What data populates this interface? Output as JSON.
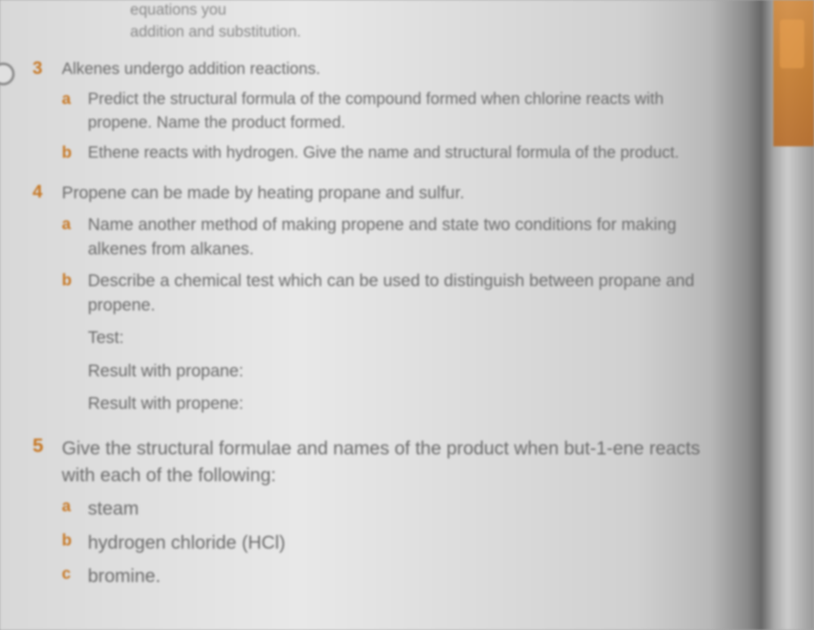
{
  "colors": {
    "accent": "#c77825",
    "body_text": "#6a6a6a",
    "faded_text": "#888888",
    "page_bg": "#e0e0e0"
  },
  "header": {
    "line1": "equations you",
    "line2": "addition and substitution."
  },
  "questions": {
    "q3": {
      "number": "3",
      "intro": "Alkenes undergo addition reactions.",
      "a": {
        "letter": "a",
        "text": "Predict the structural formula of the compound formed when chlorine reacts with propene. Name the product formed."
      },
      "b": {
        "letter": "b",
        "text": "Ethene reacts with hydrogen. Give the name and structural formula of the product."
      }
    },
    "q4": {
      "number": "4",
      "intro": "Propene can be made by heating propane and sulfur.",
      "a": {
        "letter": "a",
        "text": "Name another method of making propene and state two conditions for making alkenes from alkanes."
      },
      "b": {
        "letter": "b",
        "text": "Describe a chemical test which can be used to distinguish between propane and propene."
      },
      "fields": {
        "test": "Test:",
        "propane": "Result with propane:",
        "propene": "Result with propene:"
      }
    },
    "q5": {
      "number": "5",
      "intro": "Give the structural formulae and names of the product when but-1-ene reacts with each of the following:",
      "a": {
        "letter": "a",
        "text": "steam"
      },
      "b": {
        "letter": "b",
        "text": "hydrogen chloride (HCl)"
      },
      "c": {
        "letter": "c",
        "text": "bromine."
      }
    }
  }
}
